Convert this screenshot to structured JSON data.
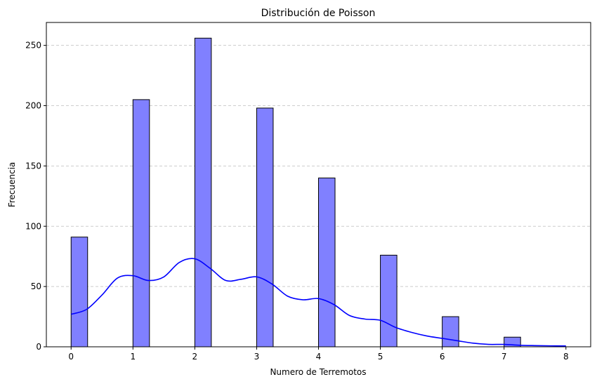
{
  "chart_data": {
    "type": "bar",
    "title": "Distribución de Poisson",
    "xlabel": "Numero de Terremotos",
    "ylabel": "Frecuencia",
    "x_ticks": [
      "0",
      "1",
      "2",
      "3",
      "4",
      "5",
      "6",
      "7",
      "8"
    ],
    "y_ticks": [
      "0",
      "50",
      "100",
      "150",
      "200",
      "250"
    ],
    "xlim": [
      -0.4,
      8.4
    ],
    "ylim": [
      0,
      269
    ],
    "bin_width": 0.267,
    "categories": [
      "0",
      "1",
      "2",
      "3",
      "4",
      "5",
      "6",
      "7"
    ],
    "values": [
      91,
      205,
      256,
      198,
      140,
      76,
      25,
      8
    ],
    "kde": {
      "x": [
        0,
        0.25,
        0.5,
        0.75,
        1.0,
        1.25,
        1.5,
        1.75,
        2.0,
        2.25,
        2.5,
        2.75,
        3.0,
        3.25,
        3.5,
        3.75,
        4.0,
        4.25,
        4.5,
        4.75,
        5.0,
        5.25,
        5.5,
        5.75,
        6.0,
        6.25,
        6.5,
        6.75,
        7.0,
        7.25,
        7.5,
        7.75,
        8.0
      ],
      "y": [
        27,
        31,
        43,
        57,
        59,
        55,
        58,
        70,
        73,
        65,
        55,
        56,
        58,
        52,
        42,
        39,
        40,
        35,
        26,
        23,
        22,
        16,
        12,
        9,
        7,
        5,
        3,
        2,
        2,
        1.3,
        1,
        0.8,
        0.7
      ]
    },
    "grid": "y-dashed",
    "colors": {
      "bar_fill": "#8080ff",
      "bar_edge": "#000000",
      "kde_line": "#0000ff",
      "grid": "#bdbdbd"
    }
  }
}
